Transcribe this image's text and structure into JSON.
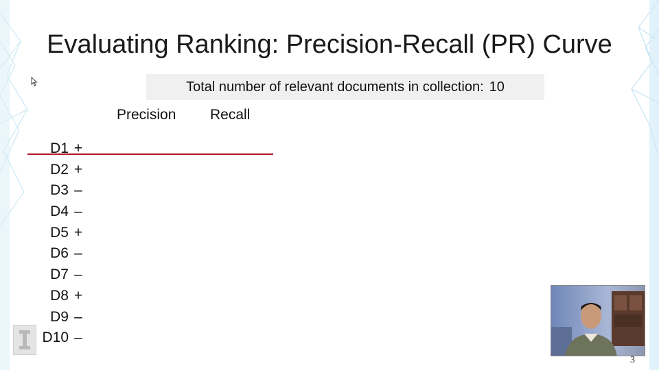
{
  "slide": {
    "title": "Evaluating Ranking: Precision-Recall (PR) Curve",
    "info_label": "Total  number of relevant documents in collection:",
    "info_value": "10",
    "columns": {
      "precision": "Precision",
      "recall": "Recall"
    },
    "documents": [
      {
        "id": "D1",
        "mark": "+"
      },
      {
        "id": "D2",
        "mark": "+"
      },
      {
        "id": "D3",
        "mark": "–"
      },
      {
        "id": "D4",
        "mark": "–"
      },
      {
        "id": "D5",
        "mark": "+"
      },
      {
        "id": "D6",
        "mark": "–"
      },
      {
        "id": "D7",
        "mark": "–"
      },
      {
        "id": "D8",
        "mark": "+"
      },
      {
        "id": "D9",
        "mark": "–"
      },
      {
        "id": "D10",
        "mark": "–"
      }
    ],
    "page_number": "3"
  },
  "colors": {
    "cutoff_line": "#b0182b",
    "info_box_bg": "#f0f0f0",
    "decor": "#9fd3ec"
  },
  "icons": {
    "cursor": "mouse-pointer-icon",
    "logo": "university-logo-icon"
  }
}
